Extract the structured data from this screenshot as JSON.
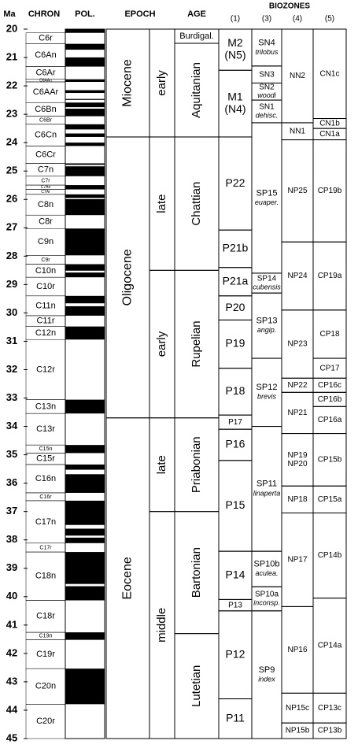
{
  "header": {
    "ma": "Ma",
    "chron": "CHRON",
    "pol": "POL.",
    "epoch": "EPOCH",
    "age": "AGE",
    "biozones": "BIOZONES",
    "columns": [
      "(1)",
      "(3)",
      "(4)",
      "(5)"
    ]
  },
  "axis": {
    "lim": [
      20,
      45
    ],
    "ticks": [
      20,
      21,
      22,
      23,
      24,
      25,
      26,
      27,
      28,
      29,
      30,
      31,
      32,
      33,
      34,
      35,
      36,
      37,
      38,
      39,
      40,
      41,
      42,
      43,
      44,
      45
    ]
  },
  "polarity": {
    "normal": [
      [
        20,
        20.131
      ],
      [
        20.518,
        20.725
      ],
      [
        20.996,
        21.32
      ],
      [
        21.768,
        21.859
      ],
      [
        22.151,
        22.248
      ],
      [
        22.459,
        22.493
      ],
      [
        22.588,
        22.75
      ],
      [
        22.804,
        23.069
      ],
      [
        23.353,
        23.535
      ],
      [
        23.677,
        23.8
      ],
      [
        23.999,
        24.118
      ],
      [
        24.73,
        24.781
      ],
      [
        24.835,
        25.183
      ],
      [
        25.496,
        25.648
      ],
      [
        25.823,
        25.951
      ],
      [
        25.992,
        26.554
      ],
      [
        27.027,
        27.972
      ],
      [
        28.283,
        28.512
      ],
      [
        28.578,
        28.745
      ],
      [
        29.401,
        29.662
      ],
      [
        29.765,
        30.098
      ],
      [
        30.479,
        30.939
      ],
      [
        33.058,
        33.545
      ],
      [
        34.655,
        34.94
      ],
      [
        35.343,
        35.526
      ],
      [
        35.685,
        36.341
      ],
      [
        36.618,
        37.473
      ],
      [
        37.604,
        37.848
      ],
      [
        37.92,
        38.113
      ],
      [
        38.426,
        39.552
      ],
      [
        39.631,
        40.13
      ],
      [
        41.257,
        41.521
      ],
      [
        42.536,
        43.789
      ]
    ]
  },
  "chrons": [
    {
      "name": "C6r",
      "top": 20.131,
      "base": 20.518
    },
    {
      "name": "C6An",
      "top": 20.518,
      "base": 21.32
    },
    {
      "name": "C6Ar",
      "top": 21.32,
      "base": 21.768
    },
    {
      "name": "C6AAn",
      "top": 21.768,
      "base": 21.859
    },
    {
      "name": "C6AAr",
      "top": 21.859,
      "base": 22.588
    },
    {
      "name": "C6Bn",
      "top": 22.588,
      "base": 23.069
    },
    {
      "name": "C6Br",
      "top": 23.069,
      "base": 23.353
    },
    {
      "name": "C6Cn",
      "top": 23.353,
      "base": 24.118
    },
    {
      "name": "C6Cr",
      "top": 24.118,
      "base": 24.73
    },
    {
      "name": "C7n",
      "top": 24.73,
      "base": 25.183
    },
    {
      "name": "C7r",
      "top": 25.183,
      "base": 25.496
    },
    {
      "name": "C7An",
      "top": 25.496,
      "base": 25.648
    },
    {
      "name": "C7Ar",
      "top": 25.648,
      "base": 25.823
    },
    {
      "name": "C8n",
      "top": 25.823,
      "base": 26.554
    },
    {
      "name": "C8r",
      "top": 26.554,
      "base": 27.027
    },
    {
      "name": "C9n",
      "top": 27.027,
      "base": 27.972
    },
    {
      "name": "C9r",
      "top": 27.972,
      "base": 28.283
    },
    {
      "name": "C10n",
      "top": 28.283,
      "base": 28.745
    },
    {
      "name": "C10r",
      "top": 28.745,
      "base": 29.401
    },
    {
      "name": "C11n",
      "top": 29.401,
      "base": 30.098
    },
    {
      "name": "C11r",
      "top": 30.098,
      "base": 30.479
    },
    {
      "name": "C12n",
      "top": 30.479,
      "base": 30.939
    },
    {
      "name": "C12r",
      "top": 30.939,
      "base": 33.058
    },
    {
      "name": "C13n",
      "top": 33.058,
      "base": 33.545
    },
    {
      "name": "C13r",
      "top": 33.545,
      "base": 34.655
    },
    {
      "name": "C15n",
      "top": 34.655,
      "base": 34.94
    },
    {
      "name": "C15r",
      "top": 34.94,
      "base": 35.343
    },
    {
      "name": "C16n",
      "top": 35.343,
      "base": 36.341
    },
    {
      "name": "C16r",
      "top": 36.341,
      "base": 36.618
    },
    {
      "name": "C17n",
      "top": 36.618,
      "base": 38.113
    },
    {
      "name": "C17r",
      "top": 38.113,
      "base": 38.426
    },
    {
      "name": "C18n",
      "top": 38.426,
      "base": 40.13
    },
    {
      "name": "C18r",
      "top": 40.13,
      "base": 41.257
    },
    {
      "name": "C19n",
      "top": 41.257,
      "base": 41.521
    },
    {
      "name": "C19r",
      "top": 41.521,
      "base": 42.536
    },
    {
      "name": "C20n",
      "top": 42.536,
      "base": 43.789
    },
    {
      "name": "C20r",
      "top": 43.789,
      "base": 45
    }
  ],
  "epochs": [
    {
      "name": "Miocene",
      "top": 20,
      "base": 23.8
    },
    {
      "name": "Oligocene",
      "top": 23.8,
      "base": 33.7
    },
    {
      "name": "Eocene",
      "top": 33.7,
      "base": 45
    }
  ],
  "subepochs": [
    {
      "name": "early",
      "top": 20,
      "base": 23.8
    },
    {
      "name": "late",
      "top": 23.8,
      "base": 28.5
    },
    {
      "name": "early",
      "top": 28.5,
      "base": 33.7
    },
    {
      "name": "late",
      "top": 33.7,
      "base": 37.0
    },
    {
      "name": "middle",
      "top": 37.0,
      "base": 45
    }
  ],
  "ages": [
    {
      "name": "Burdigal.",
      "top": 20,
      "base": 20.5
    },
    {
      "name": "Aquitanian",
      "top": 20.5,
      "base": 23.8
    },
    {
      "name": "Chattian",
      "top": 23.8,
      "base": 28.5
    },
    {
      "name": "Rupelian",
      "top": 28.5,
      "base": 33.7
    },
    {
      "name": "Priabonian",
      "top": 33.7,
      "base": 37.0
    },
    {
      "name": "Bartonian",
      "top": 37.0,
      "base": 41.3
    },
    {
      "name": "Lutetian",
      "top": 41.3,
      "base": 45
    }
  ],
  "zones1": [
    {
      "name": "M2",
      "line2": "(N5)",
      "top": 20,
      "base": 21.45
    },
    {
      "name": "M1",
      "line2": "(N4)",
      "top": 21.45,
      "base": 23.8
    },
    {
      "name": "P22",
      "top": 23.8,
      "base": 27.08
    },
    {
      "name": "P21b",
      "top": 27.08,
      "base": 28.4
    },
    {
      "name": "P21a",
      "top": 28.4,
      "base": 29.4
    },
    {
      "name": "P20",
      "top": 29.4,
      "base": 30.25
    },
    {
      "name": "P19",
      "top": 30.25,
      "base": 31.95
    },
    {
      "name": "P18",
      "top": 31.95,
      "base": 33.6
    },
    {
      "name": "P17",
      "top": 33.6,
      "base": 34.1
    },
    {
      "name": "P16",
      "top": 34.1,
      "base": 35.2
    },
    {
      "name": "P15",
      "top": 35.2,
      "base": 38.4
    },
    {
      "name": "P14",
      "top": 38.4,
      "base": 40.1
    },
    {
      "name": "P13",
      "top": 40.1,
      "base": 40.5
    },
    {
      "name": "P12",
      "top": 40.5,
      "base": 43.6
    },
    {
      "name": "P11",
      "top": 43.6,
      "base": 45
    }
  ],
  "zones3": [
    {
      "name": "SN4",
      "line2": "trilobus",
      "top": 20,
      "base": 21.3
    },
    {
      "name": "SN3",
      "top": 21.3,
      "base": 21.9
    },
    {
      "name": "SN2",
      "line2": "woodi",
      "top": 21.9,
      "base": 22.5
    },
    {
      "name": "SN1",
      "line2": "dehisc.",
      "top": 22.5,
      "base": 23.3
    },
    {
      "name": "SP15",
      "line2": "euaper.",
      "top": 23.3,
      "base": 28.6
    },
    {
      "name": "SP14",
      "line2": "cubensis",
      "top": 28.6,
      "base": 29.3
    },
    {
      "name": "SP13",
      "line2": "angip.",
      "top": 29.3,
      "base": 31.6
    },
    {
      "name": "SP12",
      "line2": "brevis",
      "top": 31.6,
      "base": 34.0
    },
    {
      "name": "SP11",
      "line2": "linaperta",
      "top": 34.0,
      "base": 38.4
    },
    {
      "name": "SP10b",
      "line2": "aculea.",
      "top": 38.4,
      "base": 39.65
    },
    {
      "name": "SP10a",
      "line2": "inconsp.",
      "top": 39.65,
      "base": 40.5
    },
    {
      "name": "SP9",
      "line2": "index",
      "top": 40.5,
      "base": 45
    }
  ],
  "zones4": [
    {
      "name": "NN2",
      "top": 20,
      "base": 23.3
    },
    {
      "name": "NN1",
      "top": 23.3,
      "base": 23.9
    },
    {
      "name": "NP25",
      "top": 23.9,
      "base": 27.5
    },
    {
      "name": "NP24",
      "top": 27.5,
      "base": 29.9
    },
    {
      "name": "NP23",
      "top": 29.9,
      "base": 32.3
    },
    {
      "name": "NP22",
      "top": 32.3,
      "base": 32.8
    },
    {
      "name": "NP21",
      "top": 32.8,
      "base": 34.25
    },
    {
      "name": "NP19",
      "line2": "NP20",
      "top": 34.25,
      "base": 36.1
    },
    {
      "name": "NP18",
      "top": 36.1,
      "base": 37.05
    },
    {
      "name": "NP17",
      "top": 37.05,
      "base": 40.35
    },
    {
      "name": "NP16",
      "top": 40.35,
      "base": 43.4
    },
    {
      "name": "NP15c",
      "top": 43.4,
      "base": 44.45
    },
    {
      "name": "NP15b",
      "top": 44.45,
      "base": 45
    }
  ],
  "zones5": [
    {
      "name": "CN1c",
      "top": 20,
      "base": 23.15
    },
    {
      "name": "CN1b",
      "top": 23.15,
      "base": 23.5
    },
    {
      "name": "CN1a",
      "top": 23.5,
      "base": 23.9
    },
    {
      "name": "CP19b",
      "top": 23.9,
      "base": 27.5
    },
    {
      "name": "CP19a",
      "top": 27.5,
      "base": 29.9
    },
    {
      "name": "CP18",
      "top": 29.9,
      "base": 31.6
    },
    {
      "name": "CP17",
      "top": 31.6,
      "base": 32.3
    },
    {
      "name": "CP16c",
      "top": 32.3,
      "base": 32.8
    },
    {
      "name": "CP16b",
      "top": 32.8,
      "base": 33.3
    },
    {
      "name": "CP16a",
      "top": 33.3,
      "base": 34.25
    },
    {
      "name": "CP15b",
      "top": 34.25,
      "base": 36.1
    },
    {
      "name": "CP15a",
      "top": 36.1,
      "base": 37.05
    },
    {
      "name": "CP14b",
      "top": 37.05,
      "base": 40.05
    },
    {
      "name": "CP14a",
      "top": 40.05,
      "base": 43.4
    },
    {
      "name": "CP13c",
      "top": 43.4,
      "base": 44.45
    },
    {
      "name": "CP13b",
      "top": 44.45,
      "base": 45
    }
  ]
}
